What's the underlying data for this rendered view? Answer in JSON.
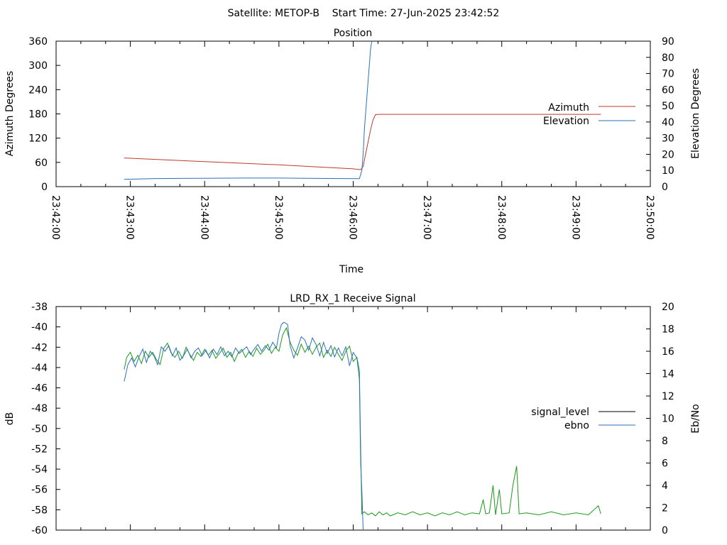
{
  "page_title": "Satellite: METOP-B    Start Time: 27-Jun-2025 23:42:52",
  "chart_data": [
    {
      "type": "line",
      "title": "Position",
      "xlabel": "Time",
      "ylabel": "Azimuth Degrees",
      "y2label": "Elevation Degrees",
      "x_ticks": [
        "23:42:00",
        "23:43:00",
        "23:44:00",
        "23:45:00",
        "23:46:00",
        "23:47:00",
        "23:48:00",
        "23:49:00",
        "23:50:00"
      ],
      "xlim": [
        "23:42:00",
        "23:50:00"
      ],
      "ylim": [
        0,
        360
      ],
      "y_ticks": [
        0,
        60,
        120,
        180,
        240,
        300,
        360
      ],
      "y2lim": [
        0,
        90
      ],
      "y2_ticks": [
        0,
        10,
        20,
        30,
        40,
        50,
        60,
        70,
        80,
        90
      ],
      "grid": false,
      "legend_position": "right",
      "series": [
        {
          "name": "Azimuth",
          "axis": "y",
          "color": "#c0392b",
          "points": [
            [
              "23:42:55",
              71
            ],
            [
              "23:43:30",
              66
            ],
            [
              "23:44:00",
              62
            ],
            [
              "23:44:30",
              58
            ],
            [
              "23:45:00",
              54
            ],
            [
              "23:45:30",
              49
            ],
            [
              "23:46:00",
              44
            ],
            [
              "23:46:06",
              42
            ],
            [
              "23:46:08",
              50
            ],
            [
              "23:46:10",
              80
            ],
            [
              "23:46:12",
              110
            ],
            [
              "23:46:14",
              140
            ],
            [
              "23:46:16",
              165
            ],
            [
              "23:46:18",
              178
            ],
            [
              "23:46:20",
              179
            ],
            [
              "23:47:00",
              179
            ],
            [
              "23:48:00",
              179
            ],
            [
              "23:49:00",
              179
            ],
            [
              "23:49:20",
              179
            ]
          ]
        },
        {
          "name": "Elevation",
          "axis": "y2",
          "color": "#2c6fbb",
          "points": [
            [
              "23:42:55",
              4.5
            ],
            [
              "23:43:20",
              5.0
            ],
            [
              "23:44:00",
              5.2
            ],
            [
              "23:44:30",
              5.3
            ],
            [
              "23:45:00",
              5.3
            ],
            [
              "23:45:30",
              5.1
            ],
            [
              "23:46:05",
              4.9
            ],
            [
              "23:46:07",
              10
            ],
            [
              "23:46:08",
              20
            ],
            [
              "23:46:09",
              35
            ],
            [
              "23:46:10",
              45
            ],
            [
              "23:46:11",
              55
            ],
            [
              "23:46:12",
              65
            ],
            [
              "23:46:13",
              75
            ],
            [
              "23:46:14",
              85
            ],
            [
              "23:46:15",
              90
            ]
          ]
        }
      ]
    },
    {
      "type": "line",
      "title": "LRD_RX_1 Receive Signal",
      "xlabel": "",
      "ylabel": "dB",
      "y2label": "Eb/No",
      "xlim": [
        "23:42:00",
        "23:50:00"
      ],
      "ylim": [
        -60,
        -38
      ],
      "y_ticks": [
        -60,
        -58,
        -56,
        -54,
        -52,
        -50,
        -48,
        -46,
        -44,
        -42,
        -40,
        -38
      ],
      "y2lim": [
        0,
        20
      ],
      "y2_ticks": [
        0,
        2,
        4,
        6,
        8,
        10,
        12,
        14,
        16,
        18,
        20
      ],
      "grid": false,
      "legend_position": "right",
      "series": [
        {
          "name": "signal_level",
          "axis": "y",
          "color": "#1a9a1a",
          "points": [
            [
              "23:42:55",
              -44.2
            ],
            [
              "23:42:57",
              -43.0
            ],
            [
              "23:43:00",
              -42.5
            ],
            [
              "23:43:03",
              -43.4
            ],
            [
              "23:43:06",
              -42.8
            ],
            [
              "23:43:09",
              -43.6
            ],
            [
              "23:43:12",
              -42.4
            ],
            [
              "23:43:15",
              -43.0
            ],
            [
              "23:43:18",
              -42.5
            ],
            [
              "23:43:21",
              -43.2
            ],
            [
              "23:43:24",
              -43.7
            ],
            [
              "23:43:27",
              -42.1
            ],
            [
              "23:43:30",
              -41.6
            ],
            [
              "23:43:33",
              -42.6
            ],
            [
              "23:43:36",
              -43.0
            ],
            [
              "23:43:39",
              -42.4
            ],
            [
              "23:43:42",
              -43.1
            ],
            [
              "23:43:45",
              -42.0
            ],
            [
              "23:43:48",
              -42.7
            ],
            [
              "23:43:51",
              -43.3
            ],
            [
              "23:43:54",
              -42.5
            ],
            [
              "23:43:57",
              -42.9
            ],
            [
              "23:44:00",
              -42.2
            ],
            [
              "23:44:03",
              -42.8
            ],
            [
              "23:44:06",
              -42.3
            ],
            [
              "23:44:09",
              -43.1
            ],
            [
              "23:44:12",
              -42.6
            ],
            [
              "23:44:15",
              -42.1
            ],
            [
              "23:44:18",
              -43.0
            ],
            [
              "23:44:21",
              -42.5
            ],
            [
              "23:44:24",
              -43.4
            ],
            [
              "23:44:27",
              -42.6
            ],
            [
              "23:44:30",
              -42.2
            ],
            [
              "23:44:33",
              -43.0
            ],
            [
              "23:44:36",
              -42.4
            ],
            [
              "23:44:39",
              -42.9
            ],
            [
              "23:44:42",
              -42.1
            ],
            [
              "23:44:45",
              -42.7
            ],
            [
              "23:44:48",
              -42.3
            ],
            [
              "23:44:51",
              -41.7
            ],
            [
              "23:44:54",
              -42.6
            ],
            [
              "23:44:57",
              -42.0
            ],
            [
              "23:45:00",
              -42.4
            ],
            [
              "23:45:03",
              -40.8
            ],
            [
              "23:45:06",
              -40.1
            ],
            [
              "23:45:09",
              -41.5
            ],
            [
              "23:45:12",
              -42.3
            ],
            [
              "23:45:15",
              -42.8
            ],
            [
              "23:45:18",
              -41.7
            ],
            [
              "23:45:21",
              -42.5
            ],
            [
              "23:45:24",
              -41.9
            ],
            [
              "23:45:27",
              -42.7
            ],
            [
              "23:45:30",
              -42.0
            ],
            [
              "23:45:33",
              -41.6
            ],
            [
              "23:45:36",
              -43.0
            ],
            [
              "23:45:39",
              -42.3
            ],
            [
              "23:45:42",
              -42.9
            ],
            [
              "23:45:45",
              -42.0
            ],
            [
              "23:45:48",
              -42.7
            ],
            [
              "23:45:51",
              -43.3
            ],
            [
              "23:45:54",
              -42.4
            ],
            [
              "23:45:57",
              -41.9
            ],
            [
              "23:46:00",
              -43.4
            ],
            [
              "23:46:03",
              -43.0
            ],
            [
              "23:46:05",
              -44.3
            ],
            [
              "23:46:06",
              -52.0
            ],
            [
              "23:46:07",
              -58.4
            ],
            [
              "23:46:09",
              -58.2
            ],
            [
              "23:46:12",
              -58.5
            ],
            [
              "23:46:15",
              -58.3
            ],
            [
              "23:46:18",
              -58.6
            ],
            [
              "23:46:21",
              -58.2
            ],
            [
              "23:46:24",
              -58.5
            ],
            [
              "23:46:27",
              -58.3
            ],
            [
              "23:46:30",
              -58.6
            ],
            [
              "23:46:36",
              -58.3
            ],
            [
              "23:46:42",
              -58.5
            ],
            [
              "23:46:48",
              -58.2
            ],
            [
              "23:46:54",
              -58.5
            ],
            [
              "23:47:00",
              -58.3
            ],
            [
              "23:47:06",
              -58.6
            ],
            [
              "23:47:12",
              -58.3
            ],
            [
              "23:47:18",
              -58.5
            ],
            [
              "23:47:24",
              -58.2
            ],
            [
              "23:47:30",
              -58.5
            ],
            [
              "23:47:36",
              -58.3
            ],
            [
              "23:47:42",
              -58.4
            ],
            [
              "23:47:45",
              -57.0
            ],
            [
              "23:47:47",
              -58.4
            ],
            [
              "23:47:50",
              -58.3
            ],
            [
              "23:47:53",
              -55.6
            ],
            [
              "23:47:55",
              -58.5
            ],
            [
              "23:47:58",
              -56.0
            ],
            [
              "23:48:00",
              -58.4
            ],
            [
              "23:48:06",
              -58.3
            ],
            [
              "23:48:09",
              -55.6
            ],
            [
              "23:48:12",
              -53.7
            ],
            [
              "23:48:14",
              -58.4
            ],
            [
              "23:48:20",
              -58.3
            ],
            [
              "23:48:30",
              -58.5
            ],
            [
              "23:48:40",
              -58.2
            ],
            [
              "23:48:50",
              -58.5
            ],
            [
              "23:49:00",
              -58.3
            ],
            [
              "23:49:10",
              -58.5
            ],
            [
              "23:49:18",
              -57.6
            ],
            [
              "23:49:20",
              -58.4
            ]
          ]
        },
        {
          "name": "ebno",
          "axis": "y2",
          "color": "#2c6fbb",
          "points": [
            [
              "23:42:55",
              13.3
            ],
            [
              "23:42:58",
              14.8
            ],
            [
              "23:43:01",
              15.4
            ],
            [
              "23:43:04",
              14.6
            ],
            [
              "23:43:07",
              15.5
            ],
            [
              "23:43:10",
              16.2
            ],
            [
              "23:43:13",
              15.0
            ],
            [
              "23:43:16",
              16.0
            ],
            [
              "23:43:19",
              15.6
            ],
            [
              "23:43:22",
              14.8
            ],
            [
              "23:43:25",
              16.4
            ],
            [
              "23:43:28",
              16.0
            ],
            [
              "23:43:31",
              16.5
            ],
            [
              "23:43:34",
              15.6
            ],
            [
              "23:43:37",
              16.3
            ],
            [
              "23:43:40",
              15.2
            ],
            [
              "23:43:43",
              15.6
            ],
            [
              "23:43:46",
              16.2
            ],
            [
              "23:43:49",
              15.4
            ],
            [
              "23:43:52",
              16.0
            ],
            [
              "23:43:55",
              16.3
            ],
            [
              "23:43:58",
              15.6
            ],
            [
              "23:44:01",
              16.1
            ],
            [
              "23:44:04",
              15.4
            ],
            [
              "23:44:07",
              16.2
            ],
            [
              "23:44:10",
              15.7
            ],
            [
              "23:44:13",
              16.4
            ],
            [
              "23:44:16",
              15.6
            ],
            [
              "23:44:19",
              16.0
            ],
            [
              "23:44:22",
              15.5
            ],
            [
              "23:44:25",
              16.3
            ],
            [
              "23:44:28",
              15.8
            ],
            [
              "23:44:31",
              16.1
            ],
            [
              "23:44:34",
              16.4
            ],
            [
              "23:44:37",
              15.7
            ],
            [
              "23:44:40",
              16.2
            ],
            [
              "23:44:43",
              16.6
            ],
            [
              "23:44:46",
              16.0
            ],
            [
              "23:44:49",
              16.5
            ],
            [
              "23:44:52",
              16.1
            ],
            [
              "23:44:55",
              16.8
            ],
            [
              "23:44:58",
              16.3
            ],
            [
              "23:45:00",
              17.6
            ],
            [
              "23:45:02",
              18.4
            ],
            [
              "23:45:04",
              18.6
            ],
            [
              "23:45:07",
              18.4
            ],
            [
              "23:45:09",
              16.5
            ],
            [
              "23:45:12",
              15.4
            ],
            [
              "23:45:15",
              16.3
            ],
            [
              "23:45:18",
              17.3
            ],
            [
              "23:45:21",
              17.0
            ],
            [
              "23:45:24",
              16.1
            ],
            [
              "23:45:27",
              17.2
            ],
            [
              "23:45:30",
              16.6
            ],
            [
              "23:45:33",
              15.6
            ],
            [
              "23:45:36",
              16.8
            ],
            [
              "23:45:39",
              15.8
            ],
            [
              "23:45:42",
              16.5
            ],
            [
              "23:45:45",
              15.5
            ],
            [
              "23:45:48",
              16.3
            ],
            [
              "23:45:51",
              15.6
            ],
            [
              "23:45:54",
              16.4
            ],
            [
              "23:45:57",
              14.7
            ],
            [
              "23:46:00",
              15.9
            ],
            [
              "23:46:03",
              15.4
            ],
            [
              "23:46:05",
              13.5
            ],
            [
              "23:46:06",
              6.0
            ],
            [
              "23:46:07",
              3.5
            ],
            [
              "23:46:08",
              0.0
            ]
          ]
        }
      ]
    }
  ]
}
